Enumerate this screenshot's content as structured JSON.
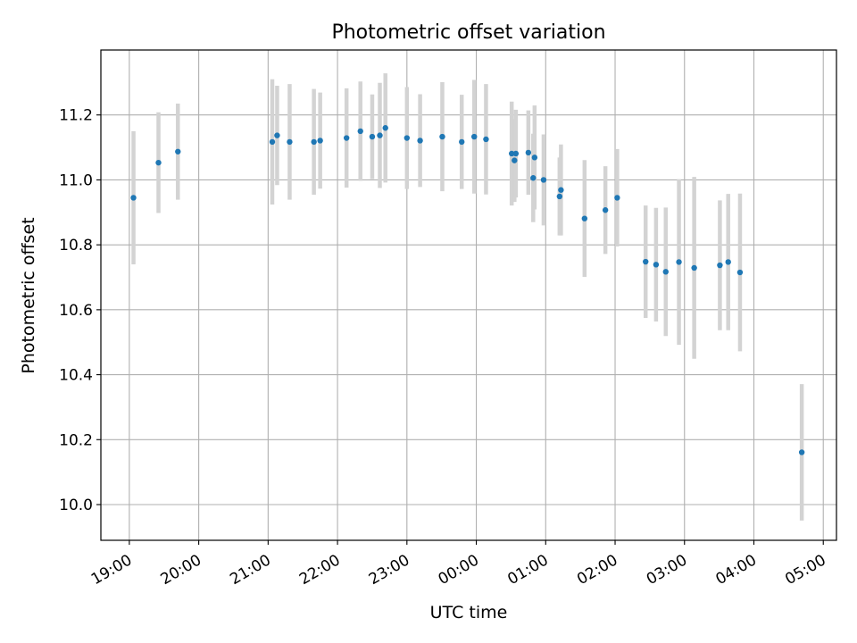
{
  "chart_data": {
    "type": "scatter",
    "title": "Photometric offset variation",
    "xlabel": "UTC time",
    "ylabel": "Photometric offset",
    "x_tick_labels": [
      "19:00",
      "20:00",
      "21:00",
      "22:00",
      "23:00",
      "00:00",
      "01:00",
      "02:00",
      "03:00",
      "04:00",
      "05:00"
    ],
    "y_tick_labels": [
      "10.0",
      "10.2",
      "10.4",
      "10.6",
      "10.8",
      "11.0",
      "11.2"
    ],
    "x_unit": "hours since 19:00 UTC",
    "x_ticks": [
      0,
      1,
      2,
      3,
      4,
      5,
      6,
      7,
      8,
      9,
      10
    ],
    "y_ticks": [
      10.0,
      10.2,
      10.4,
      10.6,
      10.8,
      11.0,
      11.2
    ],
    "xlim": [
      -0.41,
      10.19
    ],
    "ylim": [
      9.89,
      11.4
    ],
    "grid": true,
    "colors": {
      "points": "#1f77b4",
      "errorbars": "#d3d3d3",
      "grid": "#b0b0b0"
    },
    "points": [
      {
        "x": 0.06,
        "y": 10.945,
        "err": 0.205
      },
      {
        "x": 0.42,
        "y": 11.053,
        "err": 0.155
      },
      {
        "x": 0.7,
        "y": 11.087,
        "err": 0.148
      },
      {
        "x": 2.06,
        "y": 11.117,
        "err": 0.193
      },
      {
        "x": 2.13,
        "y": 11.137,
        "err": 0.153
      },
      {
        "x": 2.31,
        "y": 11.117,
        "err": 0.178
      },
      {
        "x": 2.66,
        "y": 11.117,
        "err": 0.163
      },
      {
        "x": 2.75,
        "y": 11.121,
        "err": 0.148
      },
      {
        "x": 3.13,
        "y": 11.129,
        "err": 0.153
      },
      {
        "x": 3.33,
        "y": 11.15,
        "err": 0.153
      },
      {
        "x": 3.5,
        "y": 11.133,
        "err": 0.13
      },
      {
        "x": 3.61,
        "y": 11.137,
        "err": 0.162
      },
      {
        "x": 3.69,
        "y": 11.16,
        "err": 0.168
      },
      {
        "x": 4.0,
        "y": 11.129,
        "err": 0.157
      },
      {
        "x": 4.19,
        "y": 11.121,
        "err": 0.143
      },
      {
        "x": 4.51,
        "y": 11.133,
        "err": 0.168
      },
      {
        "x": 4.79,
        "y": 11.117,
        "err": 0.145
      },
      {
        "x": 4.97,
        "y": 11.133,
        "err": 0.175
      },
      {
        "x": 5.14,
        "y": 11.125,
        "err": 0.17
      },
      {
        "x": 5.51,
        "y": 11.081,
        "err": 0.16
      },
      {
        "x": 5.55,
        "y": 11.06,
        "err": 0.128
      },
      {
        "x": 5.57,
        "y": 11.081,
        "err": 0.135
      },
      {
        "x": 5.75,
        "y": 11.084,
        "err": 0.13
      },
      {
        "x": 5.82,
        "y": 11.006,
        "err": 0.136
      },
      {
        "x": 5.84,
        "y": 11.069,
        "err": 0.16
      },
      {
        "x": 5.97,
        "y": 11.0,
        "err": 0.14
      },
      {
        "x": 6.2,
        "y": 10.949,
        "err": 0.12
      },
      {
        "x": 6.22,
        "y": 10.969,
        "err": 0.14
      },
      {
        "x": 6.56,
        "y": 10.881,
        "err": 0.18
      },
      {
        "x": 6.86,
        "y": 10.907,
        "err": 0.135
      },
      {
        "x": 7.03,
        "y": 10.945,
        "err": 0.15
      },
      {
        "x": 7.44,
        "y": 10.748,
        "err": 0.173
      },
      {
        "x": 7.59,
        "y": 10.739,
        "err": 0.175
      },
      {
        "x": 7.73,
        "y": 10.717,
        "err": 0.198
      },
      {
        "x": 7.92,
        "y": 10.747,
        "err": 0.255
      },
      {
        "x": 8.14,
        "y": 10.729,
        "err": 0.28
      },
      {
        "x": 8.51,
        "y": 10.737,
        "err": 0.2
      },
      {
        "x": 8.63,
        "y": 10.747,
        "err": 0.21
      },
      {
        "x": 8.8,
        "y": 10.715,
        "err": 0.243
      },
      {
        "x": 9.69,
        "y": 10.161,
        "err": 0.21
      }
    ]
  }
}
